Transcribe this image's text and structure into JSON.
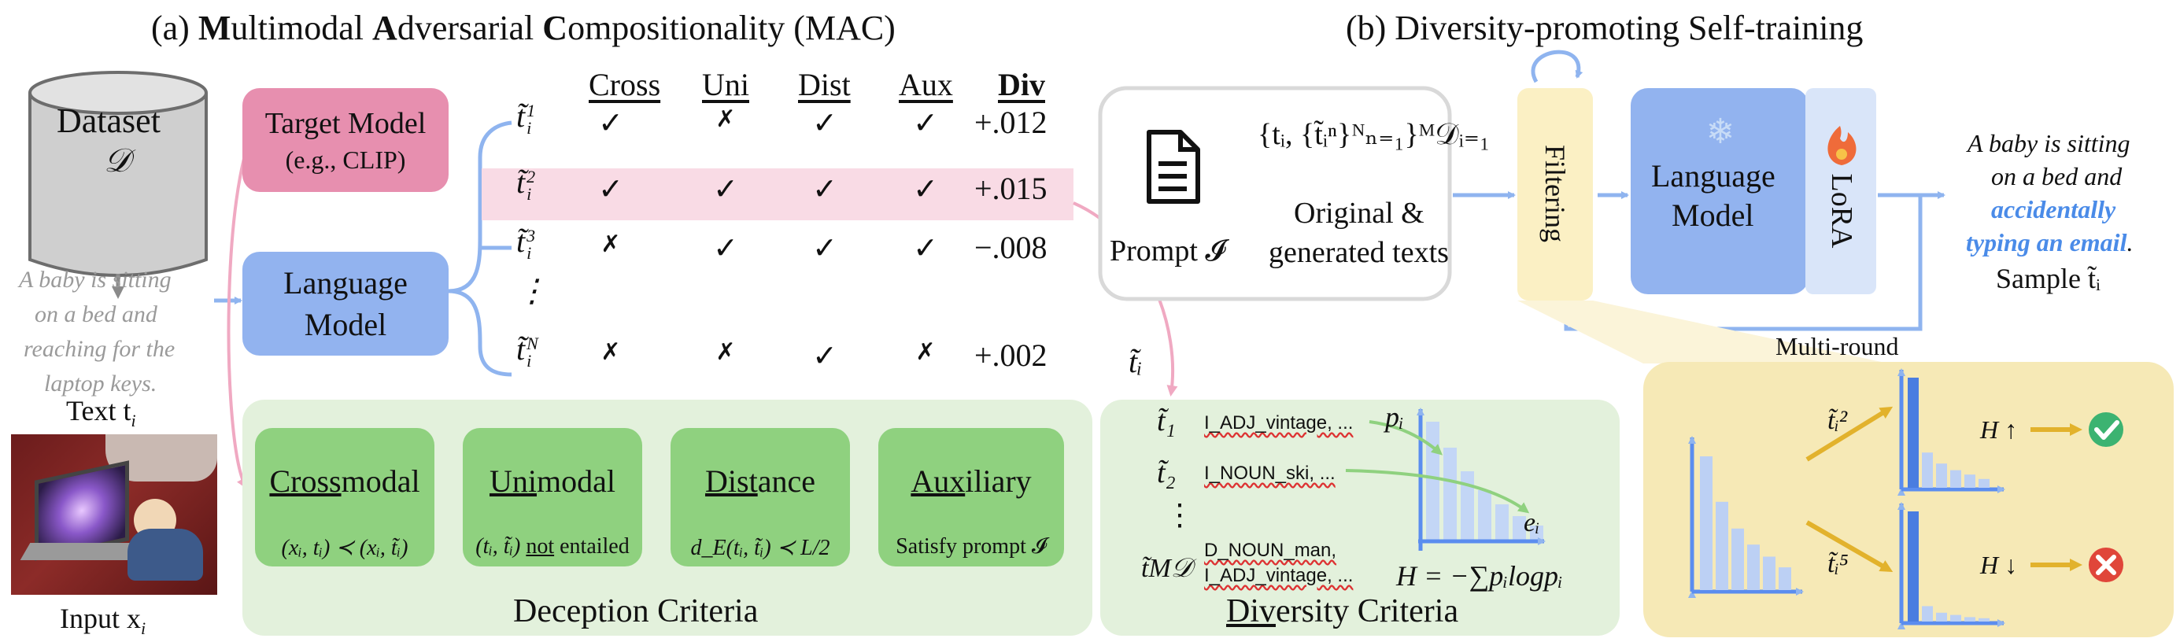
{
  "panel_a": {
    "title_prefix": "(a) ",
    "title_m": "M",
    "title_m_rest": "ultimodal ",
    "title_a": "A",
    "title_a_rest": "dversarial ",
    "title_c": "C",
    "title_c_rest": "ompositionality (MAC)"
  },
  "dataset": {
    "label": "Dataset",
    "symbol": "𝒟"
  },
  "sample_text": {
    "lines": [
      "A baby is sitting",
      "on a bed and",
      "reaching for the",
      "laptop keys."
    ],
    "label": "Text t",
    "label_sub": "i"
  },
  "input_image": {
    "label": "Input x",
    "label_sub": "i"
  },
  "target_model": {
    "line1": "Target Model",
    "line2": "(e.g., CLIP)"
  },
  "language_model_a": {
    "line1": "Language",
    "line2": "Model"
  },
  "table": {
    "headers": [
      "Cross",
      "Uni",
      "Dist",
      "Aux",
      "Div"
    ],
    "rows": [
      {
        "label": "t̃",
        "sup": "1",
        "sub": "i",
        "marks": [
          "✓",
          "✗",
          "✓",
          "✓"
        ],
        "div": "+.012"
      },
      {
        "label": "t̃",
        "sup": "2",
        "sub": "i",
        "marks": [
          "✓",
          "✓",
          "✓",
          "✓"
        ],
        "div": "+.015"
      },
      {
        "label": "t̃",
        "sup": "3",
        "sub": "i",
        "marks": [
          "✗",
          "✓",
          "✓",
          "✓"
        ],
        "div": "−.008"
      },
      {
        "label": "⋮",
        "sup": "",
        "sub": "",
        "marks": [
          "",
          "",
          "",
          ""
        ],
        "div": ""
      },
      {
        "label": "t̃",
        "sup": "N",
        "sub": "i",
        "marks": [
          "✗",
          "✗",
          "✓",
          "✗"
        ],
        "div": "+.002"
      }
    ]
  },
  "deception": {
    "title": "Deception Criteria",
    "cards": [
      {
        "title_u": "Cross",
        "title_rest": "modal",
        "body": "(xᵢ, tᵢ) ≺ (xᵢ, t̃ᵢ)"
      },
      {
        "title_u": "Uni",
        "title_rest": "modal",
        "body_pre": "(tᵢ, t̃ᵢ) ",
        "body_u": "not",
        "body_post": " entailed"
      },
      {
        "title_u": "Dist",
        "title_rest": "ance",
        "body": "d_E(tᵢ, t̃ᵢ) ≺ L/2"
      },
      {
        "title_u": "Aux",
        "title_rest": "iliary",
        "body": "Satisfy prompt 𝓘"
      }
    ]
  },
  "diversity": {
    "title_u": "Div",
    "title_rest": "ersity Criteria",
    "t_label": "t̃ᵢ",
    "items": [
      {
        "label": "t̃₁",
        "text": "I_ADJ_vintage, ..."
      },
      {
        "label": "t̃₂",
        "text": "I_NOUN_ski, ..."
      },
      {
        "label": "⋮",
        "text": ""
      },
      {
        "label": "t̃M𝒟",
        "text1": "D_NOUN_man,",
        "text2": "I_ADJ_vintage, ..."
      }
    ],
    "p_label": "pᵢ",
    "e_label": "eᵢ",
    "entropy": "H = −∑pᵢlogpᵢ",
    "bars": [
      1.0,
      0.78,
      0.58,
      0.42,
      0.3,
      0.2,
      0.12
    ]
  },
  "panel_b": {
    "title": "(b) Diversity-promoting Self-training",
    "prompt_label": "Prompt 𝓘",
    "set_formula": "{tᵢ, {t̃ᵢⁿ}ᴺₙ₌₁}ᴹ𝒟ᵢ₌₁",
    "orig_line1": "Original &",
    "orig_line2": "generated texts",
    "filtering": "Filtering",
    "lm_line1": "Language",
    "lm_line2": "Model",
    "lora": "LoRA",
    "sample_lines": [
      "A baby is sitting",
      "on a bed and"
    ],
    "sample_highlight": [
      "accidentally",
      "typing an email"
    ],
    "sample_end": ".",
    "sample_label": "Sample t̃ᵢ",
    "multi_round": "Multi-round",
    "zoom": {
      "upper_label": "t̃ᵢ²",
      "lower_label": "t̃ᵢ⁵",
      "h_up": "H ↑",
      "h_down": "H ↓",
      "left_bars": [
        1.0,
        0.66,
        0.46,
        0.34,
        0.25,
        0.17
      ],
      "up_bars": [
        1.0,
        0.32,
        0.22,
        0.16,
        0.12,
        0.08
      ],
      "down_bars": [
        1.0,
        0.14,
        0.08,
        0.06,
        0.04,
        0.03
      ]
    },
    "colors": {
      "blue": "#5b8def",
      "pink": "#e99ab5",
      "green": "#8fd17f",
      "yellow": "#f6e9b6",
      "check": "#3cb371",
      "cross": "#e0463a"
    }
  }
}
